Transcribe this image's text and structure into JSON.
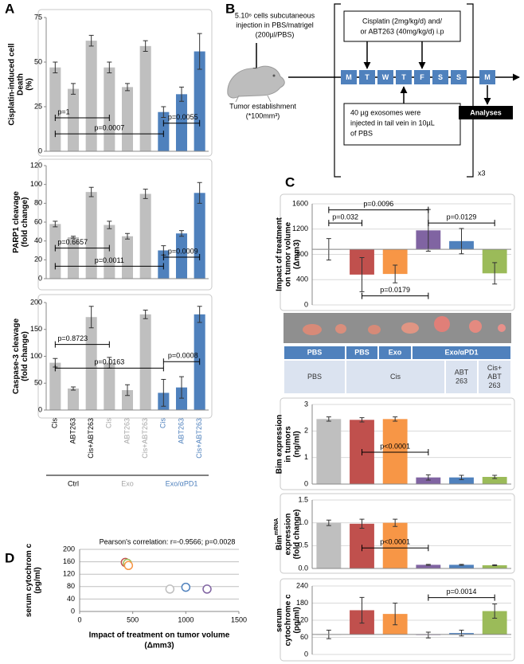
{
  "panel_labels": [
    "A",
    "B",
    "C",
    "D"
  ],
  "diagram": {
    "injection": [
      "5.10⁶ cells subcutaneous",
      "injection in PBS/matrigel",
      "(200µl/PBS)"
    ],
    "tumor": [
      "Tumor establishment",
      "(*100mm³)"
    ],
    "treatment": [
      "Cisplatin (2mg/kg/d) and/",
      "or ABT263 (40mg/kg/d) i.p"
    ],
    "exosomes": [
      "40 µg exosomes were",
      "injected in tail vein in 10µL",
      "of PBS"
    ],
    "days": [
      "M",
      "T",
      "W",
      "T",
      "F",
      "S",
      "S"
    ],
    "next_day": "M",
    "analyses": "Analyses",
    "repeat": "x3"
  },
  "treatment_table": {
    "rows": [
      [
        "PBS",
        "PBS",
        "Exo",
        "Exo/αPD1"
      ],
      [
        "PBS",
        "Cis",
        [
          "ABT",
          "263"
        ],
        [
          "Cis+",
          "ABT",
          "263"
        ]
      ]
    ]
  },
  "chart_data": [
    {
      "type": "bar",
      "ylabel": [
        "Cisplatin-induced cell",
        "Death",
        "(%)"
      ],
      "values": [
        47,
        35,
        62,
        47,
        36,
        59,
        22,
        32,
        56
      ],
      "errors": [
        3,
        3,
        3,
        3,
        2,
        3,
        3,
        4,
        10
      ],
      "colors": [
        "#bfbfbf",
        "#bfbfbf",
        "#bfbfbf",
        "#bfbfbf",
        "#bfbfbf",
        "#bfbfbf",
        "#4f81bd",
        "#4f81bd",
        "#4f81bd"
      ],
      "ylim": [
        0,
        75
      ],
      "yticks": [
        0,
        25,
        50,
        75
      ],
      "grid": false,
      "annotations": [
        "p=1",
        "p=0.0007",
        "p=0.0055"
      ]
    },
    {
      "type": "bar",
      "ylabel": [
        "PARP1 cleavage",
        "(fold change)"
      ],
      "values": [
        58,
        44,
        92,
        57,
        45,
        90,
        30,
        48,
        91
      ],
      "errors": [
        3,
        1,
        5,
        4,
        3,
        5,
        5,
        3,
        11
      ],
      "colors": [
        "#bfbfbf",
        "#bfbfbf",
        "#bfbfbf",
        "#bfbfbf",
        "#bfbfbf",
        "#bfbfbf",
        "#4f81bd",
        "#4f81bd",
        "#4f81bd"
      ],
      "ylim": [
        0,
        120
      ],
      "yticks": [
        0,
        20,
        40,
        60,
        80,
        100,
        120
      ],
      "grid": false,
      "annotations": [
        "p=0.6657",
        "p=0.0011",
        "p=0.0009"
      ]
    },
    {
      "type": "bar",
      "ylabel": [
        "Caspase-3 cleavage",
        "(fold change)"
      ],
      "categories": [
        "Cis",
        "ABT263",
        "Cis+ABT263",
        "Cis",
        "ABT263",
        "Cis+ABT263",
        "Cis",
        "ABT263",
        "Cis+ABT263"
      ],
      "groups": [
        {
          "name": "Ctrl",
          "color": "#000000"
        },
        {
          "name": "Exo",
          "color": "#a6a6a6"
        },
        {
          "name": "Exo/αPD1",
          "color": "#4f81bd"
        }
      ],
      "values": [
        88,
        40,
        173,
        88,
        37,
        178,
        32,
        42,
        178
      ],
      "errors": [
        8,
        3,
        20,
        10,
        10,
        8,
        25,
        20,
        15
      ],
      "colors": [
        "#bfbfbf",
        "#bfbfbf",
        "#bfbfbf",
        "#bfbfbf",
        "#bfbfbf",
        "#bfbfbf",
        "#4f81bd",
        "#4f81bd",
        "#4f81bd"
      ],
      "ylim": [
        0,
        200
      ],
      "yticks": [
        0,
        50,
        100,
        150,
        200
      ],
      "grid": false,
      "annotations": [
        "p=0.8723",
        "p=0.0163",
        "p=0.0008"
      ]
    },
    {
      "type": "bar",
      "ylabel": [
        "Impact of treatment",
        "on tumor volume",
        "(Δmm3)"
      ],
      "values": [
        880,
        480,
        490,
        1180,
        1010,
        500
      ],
      "errors": [
        170,
        270,
        140,
        330,
        200,
        170
      ],
      "colors": [
        "#bfbfbf",
        "#c0504d",
        "#f79646",
        "#8064a2",
        "#4f81bd",
        "#9bbb59"
      ],
      "ylim": [
        0,
        1600
      ],
      "yticks": [
        0,
        400,
        800,
        1200,
        1600
      ],
      "grid": true,
      "bar_base": "first",
      "annotations": [
        "p=0.0096",
        "p=0.032",
        "p=0.0129",
        "p=0.0179"
      ]
    },
    {
      "type": "bar",
      "ylabel": [
        "Bim expression",
        "in tumors",
        "(ng/ml)"
      ],
      "values": [
        2.45,
        2.42,
        2.45,
        0.25,
        0.25,
        0.27
      ],
      "errors": [
        0.08,
        0.08,
        0.08,
        0.1,
        0.08,
        0.06
      ],
      "colors": [
        "#bfbfbf",
        "#c0504d",
        "#f79646",
        "#8064a2",
        "#4f81bd",
        "#9bbb59"
      ],
      "ylim": [
        0,
        3
      ],
      "yticks": [
        0,
        1,
        2,
        3
      ],
      "grid": true,
      "annotations": [
        "p<0.0001"
      ]
    },
    {
      "type": "bar",
      "ylabel": [
        "Bim",
        "expression",
        "(fold change)"
      ],
      "ylabel_superscript": "mRNA",
      "values": [
        1.0,
        0.98,
        1.0,
        0.08,
        0.08,
        0.07
      ],
      "errors": [
        0.06,
        0.1,
        0.08,
        0.01,
        0.01,
        0.01
      ],
      "colors": [
        "#bfbfbf",
        "#c0504d",
        "#f79646",
        "#8064a2",
        "#4f81bd",
        "#9bbb59"
      ],
      "ylim": [
        0,
        1.5
      ],
      "yticks": [
        {
          "value": 0,
          "label": "0.0"
        },
        {
          "value": 0.5,
          "label": "0.5"
        },
        {
          "value": 1,
          "label": "1.0"
        },
        {
          "value": 1.5,
          "label": "1.5"
        }
      ],
      "grid": true,
      "annotations": [
        "p<0.0001"
      ]
    },
    {
      "type": "bar",
      "ylabel": [
        "serum",
        "cytochrome c",
        "(pg/ml)"
      ],
      "values": [
        70,
        155,
        142,
        68,
        75,
        152
      ],
      "errors": [
        15,
        45,
        38,
        10,
        10,
        25
      ],
      "colors": [
        "#bfbfbf",
        "#c0504d",
        "#f79646",
        "#8064a2",
        "#4f81bd",
        "#9bbb59"
      ],
      "ylim": [
        0,
        240
      ],
      "yticks": [
        0,
        60,
        120,
        180,
        240
      ],
      "grid": true,
      "bar_base": "first",
      "annotations": [
        "p=0.0014"
      ]
    },
    {
      "type": "scatter",
      "title": "Pearson's correlation: r=-0.9566; p=0.0028",
      "ylabel": [
        "serum cytochrom c",
        "(pg/ml)"
      ],
      "xlabel": [
        "Impact of treatment on tumor volume",
        "(Δmm3)"
      ],
      "x": [
        430,
        450,
        460,
        850,
        1000,
        1200
      ],
      "values": [
        158,
        155,
        148,
        72,
        78,
        72
      ],
      "colors": [
        "#c0504d",
        "#9bbb59",
        "#f79646",
        "#bfbfbf",
        "#4f81bd",
        "#8064a2"
      ],
      "xlim": [
        0,
        1500
      ],
      "xticks": [
        0,
        500,
        1000,
        1500
      ],
      "ylim": [
        0,
        200
      ],
      "yticks": [
        0,
        40,
        80,
        120,
        160,
        200
      ],
      "grid": true
    }
  ]
}
